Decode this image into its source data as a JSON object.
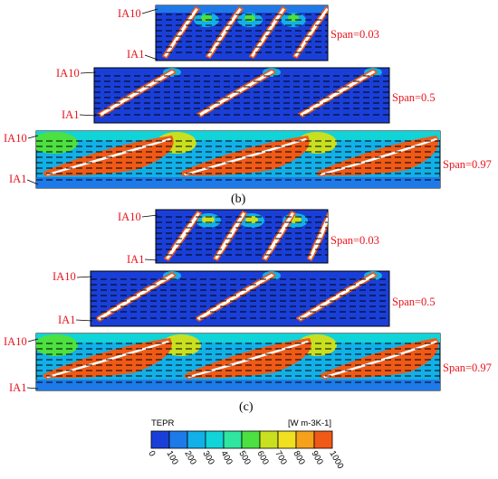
{
  "figure": {
    "groups": [
      {
        "caption": "",
        "panels": [
          {
            "span_label": "Span=0.03",
            "top_label": "IA10",
            "bottom_label": "IA1",
            "blades": 4,
            "intensity": "low"
          },
          {
            "span_label": "Span=0.5",
            "top_label": "IA10",
            "bottom_label": "IA1",
            "blades": 3,
            "intensity": "low"
          },
          {
            "span_label": "Span=0.97",
            "top_label": "IA10",
            "bottom_label": "IA1",
            "blades": 3,
            "intensity": "high"
          }
        ]
      },
      {
        "caption": "(b)",
        "panels": [
          {
            "span_label": "Span=0.03",
            "top_label": "IA10",
            "bottom_label": "IA1",
            "blades": 4,
            "intensity": "low"
          },
          {
            "span_label": "Span=0.5",
            "top_label": "IA10",
            "bottom_label": "IA1",
            "blades": 3,
            "intensity": "low"
          },
          {
            "span_label": "Span=0.97",
            "top_label": "IA10",
            "bottom_label": "IA1",
            "blades": 3,
            "intensity": "high"
          }
        ]
      },
      {
        "caption": "(c)",
        "panels": []
      }
    ],
    "colorbar": {
      "title": "TEPR",
      "unit": "[W m-3K-1]",
      "ticks": [
        "0",
        "100",
        "200",
        "300",
        "400",
        "500",
        "600",
        "700",
        "800",
        "900",
        "1000"
      ],
      "colors": [
        "#1a3fd8",
        "#1e7ae8",
        "#12b0e8",
        "#10d4d8",
        "#2ee6a0",
        "#4ce040",
        "#c8e020",
        "#f0e020",
        "#f5a21a",
        "#f05a16"
      ]
    }
  }
}
